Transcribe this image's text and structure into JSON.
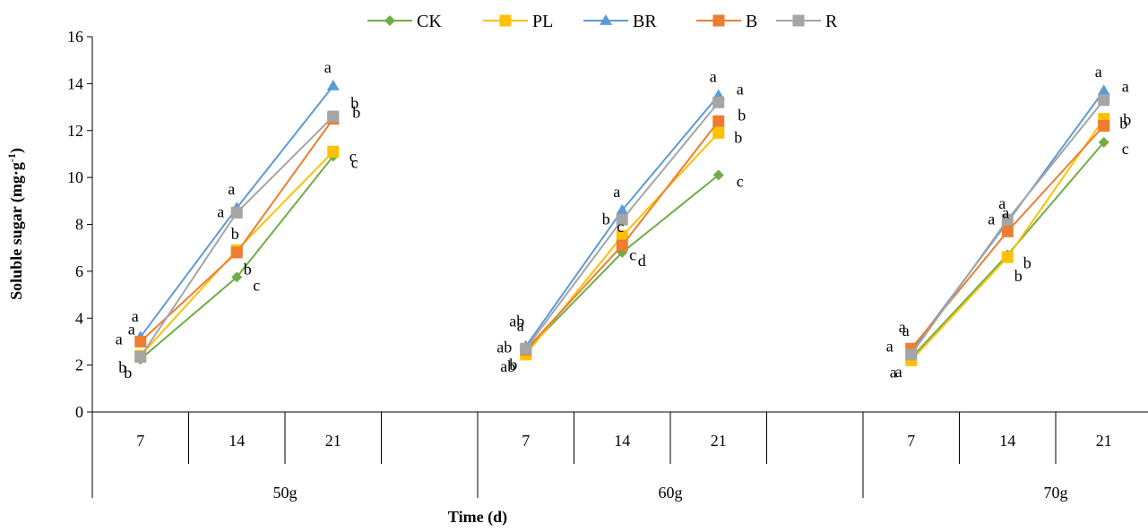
{
  "chart_data": {
    "type": "line",
    "title": "",
    "ylabel": "Soluble sugar (mg·g",
    "ylabel_sup": "-1",
    "ylabel_close": ")",
    "xlabel": "Time (d)",
    "ylim": [
      0,
      16
    ],
    "yticks": [
      "0",
      "2",
      "4",
      "6",
      "8",
      "10",
      "12",
      "14",
      "16"
    ],
    "legend_position": "top",
    "groups": [
      {
        "label": "50g",
        "ticks": [
          "7",
          "14",
          "21"
        ]
      },
      {
        "label": "60g",
        "ticks": [
          "7",
          "14",
          "21"
        ]
      },
      {
        "label": "70g",
        "ticks": [
          "7",
          "14",
          "21"
        ]
      }
    ],
    "series": [
      {
        "name": "CK",
        "color": "#70AD47",
        "marker": "diamond",
        "values": [
          [
            2.25,
            5.75,
            10.9
          ],
          [
            2.6,
            6.8,
            10.1
          ],
          [
            2.3,
            6.7,
            11.5
          ]
        ],
        "letters": [
          [
            "b",
            "c",
            "c"
          ],
          [
            "b",
            "d",
            "c"
          ],
          [
            "a",
            "b",
            "c"
          ]
        ]
      },
      {
        "name": "PL",
        "color": "#FFC000",
        "marker": "square",
        "values": [
          [
            2.4,
            6.9,
            11.1
          ],
          [
            2.45,
            7.5,
            11.9
          ],
          [
            2.2,
            6.6,
            12.5
          ]
        ],
        "letters": [
          [
            "b",
            "b",
            "c"
          ],
          [
            "ab",
            "c",
            "b"
          ],
          [
            "a",
            "b",
            "b"
          ]
        ]
      },
      {
        "name": "BR",
        "color": "#5B9BD5",
        "marker": "triangle",
        "values": [
          [
            3.2,
            8.7,
            13.9
          ],
          [
            2.8,
            8.6,
            13.5
          ],
          [
            2.6,
            8.1,
            13.7
          ]
        ],
        "letters": [
          [
            "a",
            "a",
            "a"
          ],
          [
            "a",
            "a",
            "a"
          ],
          [
            "a",
            "a",
            "a"
          ]
        ]
      },
      {
        "name": "B",
        "color": "#ED7D31",
        "marker": "square",
        "values": [
          [
            3.0,
            6.8,
            12.5
          ],
          [
            2.65,
            7.1,
            12.4
          ],
          [
            2.7,
            7.7,
            12.2
          ]
        ],
        "letters": [
          [
            "a",
            "b",
            "b"
          ],
          [
            "ab",
            "c",
            "b"
          ],
          [
            "a",
            "a",
            "b"
          ]
        ]
      },
      {
        "name": "R",
        "color": "#A5A5A5",
        "marker": "square",
        "values": [
          [
            2.35,
            8.5,
            12.6
          ],
          [
            2.7,
            8.2,
            13.2
          ],
          [
            2.45,
            8.2,
            13.3
          ]
        ],
        "letters": [
          [
            "a",
            "a",
            "b"
          ],
          [
            "ab",
            "b",
            "a"
          ],
          [
            "a",
            "a",
            "a"
          ]
        ]
      }
    ]
  }
}
